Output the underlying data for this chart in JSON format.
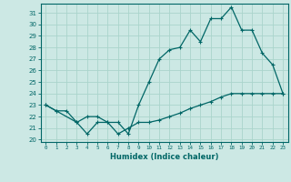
{
  "xlabel": "Humidex (Indice chaleur)",
  "bg_color": "#cce8e4",
  "line_color": "#006666",
  "grid_color": "#aad4cc",
  "xlim": [
    -0.5,
    23.5
  ],
  "ylim": [
    19.8,
    31.8
  ],
  "yticks": [
    20,
    21,
    22,
    23,
    24,
    25,
    26,
    27,
    28,
    29,
    30,
    31
  ],
  "xticks": [
    0,
    1,
    2,
    3,
    4,
    5,
    6,
    7,
    8,
    9,
    10,
    11,
    12,
    13,
    14,
    15,
    16,
    17,
    18,
    19,
    20,
    21,
    22,
    23
  ],
  "line1_x": [
    0,
    1,
    2,
    3,
    4,
    5,
    6,
    7,
    8,
    9,
    10,
    11,
    12,
    13,
    14,
    15,
    16,
    17,
    18,
    19,
    20,
    21,
    22,
    23
  ],
  "line1_y": [
    23.0,
    22.5,
    22.5,
    21.5,
    20.5,
    21.5,
    21.5,
    20.5,
    21.0,
    21.5,
    21.5,
    21.7,
    22.0,
    22.3,
    22.7,
    23.0,
    23.3,
    23.7,
    24.0,
    24.0,
    24.0,
    24.0,
    24.0,
    24.0
  ],
  "line2_x": [
    0,
    1,
    3,
    4,
    5,
    6,
    7,
    8,
    9,
    10,
    11,
    12,
    13,
    14,
    15,
    16,
    17,
    18,
    19,
    20,
    21,
    22,
    23
  ],
  "line2_y": [
    23.0,
    22.5,
    21.5,
    22.0,
    22.0,
    21.5,
    21.5,
    20.5,
    23.0,
    25.0,
    27.0,
    27.8,
    28.0,
    29.5,
    28.5,
    30.5,
    30.5,
    31.5,
    29.5,
    29.5,
    27.5,
    26.5,
    24.0
  ]
}
